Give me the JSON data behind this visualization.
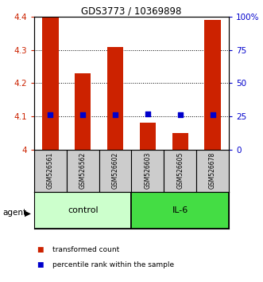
{
  "title": "GDS3773 / 10369898",
  "samples": [
    "GSM526561",
    "GSM526562",
    "GSM526602",
    "GSM526603",
    "GSM526605",
    "GSM526678"
  ],
  "bar_values": [
    4.4,
    4.23,
    4.31,
    4.08,
    4.05,
    4.39
  ],
  "percentile_values": [
    26,
    26,
    26,
    27,
    26,
    26
  ],
  "ylim_left": [
    4.0,
    4.4
  ],
  "ylim_right": [
    0,
    100
  ],
  "bar_color": "#cc2200",
  "dot_color": "#0000cc",
  "groups": [
    {
      "label": "control",
      "indices": [
        0,
        1,
        2
      ],
      "color": "#ccffcc"
    },
    {
      "label": "IL-6",
      "indices": [
        3,
        4,
        5
      ],
      "color": "#44dd44"
    }
  ],
  "sample_box_color": "#cccccc",
  "yticks_left": [
    4.0,
    4.1,
    4.2,
    4.3,
    4.4
  ],
  "yticks_right": [
    0,
    25,
    50,
    75,
    100
  ],
  "ytick_labels_right": [
    "0",
    "25",
    "50",
    "75",
    "100%"
  ],
  "ytick_labels_left": [
    "4",
    "4.1",
    "4.2",
    "4.3",
    "4.4"
  ],
  "agent_label": "agent",
  "legend_items": [
    {
      "label": "transformed count",
      "color": "#cc2200"
    },
    {
      "label": "percentile rank within the sample",
      "color": "#0000cc"
    }
  ]
}
